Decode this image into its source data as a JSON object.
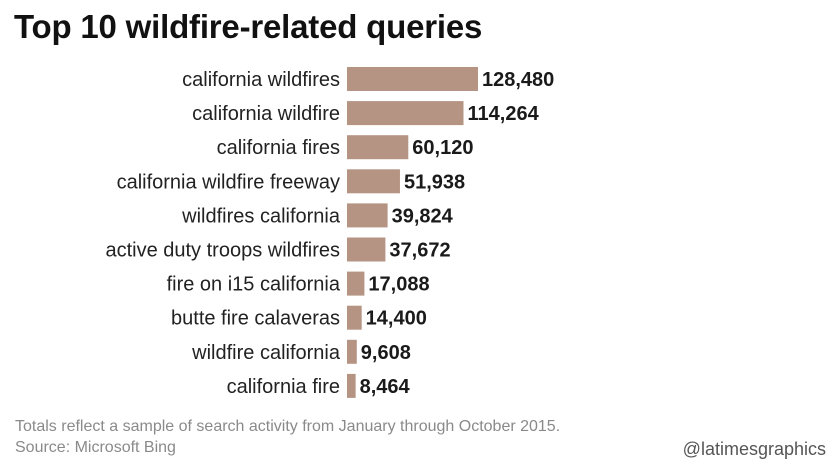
{
  "chart_data": {
    "type": "bar",
    "orientation": "horizontal",
    "title": "Top 10 wildfire-related queries",
    "categories": [
      "california wildfires",
      "california wildfire",
      "california fires",
      "california wildfire freeway",
      "wildfires california",
      "active duty troops wildfires",
      "fire on i15 california",
      "butte fire calaveras",
      "wildfire california",
      "california fire"
    ],
    "values": [
      128480,
      114264,
      60120,
      51938,
      39824,
      37672,
      17088,
      14400,
      9608,
      8464
    ],
    "value_labels": [
      "128,480",
      "114,264",
      "60,120",
      "51,938",
      "39,824",
      "37,672",
      "17,088",
      "14,400",
      "9,608",
      "8,464"
    ],
    "bar_color": "#b59483",
    "grid": false,
    "xlabel": "",
    "ylabel": ""
  },
  "footer": {
    "note": "Totals reflect a sample of search activity from January through October 2015.",
    "source": "Source: Microsoft Bing",
    "credit": "@latimesgraphics"
  }
}
